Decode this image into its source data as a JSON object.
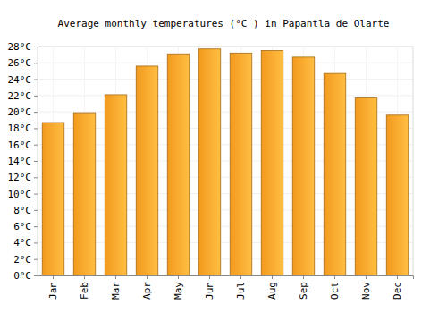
{
  "chart_data": {
    "type": "bar",
    "title": "Average monthly temperatures (°C ) in Papantla de Olarte",
    "categories": [
      "Jan",
      "Feb",
      "Mar",
      "Apr",
      "May",
      "Jun",
      "Jul",
      "Aug",
      "Sep",
      "Oct",
      "Nov",
      "Dec"
    ],
    "values": [
      18.7,
      19.9,
      22.1,
      25.6,
      27.1,
      27.7,
      27.2,
      27.5,
      26.7,
      24.7,
      21.7,
      19.6
    ],
    "color": "#ffa21f",
    "ylim": [
      0,
      28
    ],
    "yticks": [
      {
        "value": 0,
        "label": "0°C"
      },
      {
        "value": 2,
        "label": "2°C"
      },
      {
        "value": 4,
        "label": "4°C"
      },
      {
        "value": 6,
        "label": "6°C"
      },
      {
        "value": 8,
        "label": "8°C"
      },
      {
        "value": 10,
        "label": "10°C"
      },
      {
        "value": 12,
        "label": "12°C"
      },
      {
        "value": 14,
        "label": "14°C"
      },
      {
        "value": 16,
        "label": "16°C"
      },
      {
        "value": 18,
        "label": "18°C"
      },
      {
        "value": 20,
        "label": "20°C"
      },
      {
        "value": 22,
        "label": "22°C"
      },
      {
        "value": 24,
        "label": "24°C"
      },
      {
        "value": 26,
        "label": "26°C"
      },
      {
        "value": 28,
        "label": "28°C"
      }
    ],
    "grid": true
  }
}
